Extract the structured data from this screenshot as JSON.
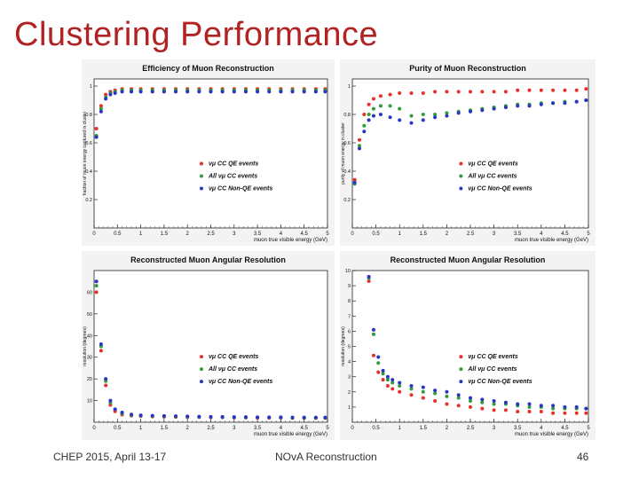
{
  "slide": {
    "title": "Clustering Performance",
    "footer_left": "CHEP 2015,  April 13-17",
    "footer_center": "NOvA Reconstruction",
    "page_number": "46"
  },
  "colors": {
    "title": "#b22222",
    "red": "#e8302a",
    "green": "#2e9e3a",
    "blue": "#2a35c8"
  },
  "chart_data": [
    {
      "type": "scatter",
      "title": "Efficiency of Muon Reconstruction",
      "xlabel": "muon true visible energy (GeV)",
      "ylabel": "fraction of muon energy captured in cluster",
      "xlim": [
        0,
        5
      ],
      "ylim": [
        0,
        1.05
      ],
      "xticks": [
        0,
        0.5,
        1,
        1.5,
        2,
        2.5,
        3,
        3.5,
        4,
        4.5,
        5
      ],
      "xtick_labels": [
        "0",
        "0.5",
        "1",
        "1.5",
        "2",
        "2.5",
        "3",
        "3.5",
        "4",
        "4.5",
        "5"
      ],
      "yticks": [
        0.2,
        0.4,
        0.6,
        0.8,
        1
      ],
      "ytick_labels": [
        "0.2",
        "0.4",
        "0.6",
        "0.8",
        "1"
      ],
      "legend_position": "center-right",
      "series": [
        {
          "name": "νμ CC QE events",
          "color": "#e8302a",
          "x": [
            0.05,
            0.15,
            0.25,
            0.35,
            0.45,
            0.6,
            0.8,
            1.0,
            1.25,
            1.5,
            1.75,
            2.0,
            2.25,
            2.5,
            2.75,
            3.0,
            3.25,
            3.5,
            3.75,
            4.0,
            4.25,
            4.5,
            4.75,
            4.95
          ],
          "y": [
            0.7,
            0.86,
            0.94,
            0.96,
            0.97,
            0.98,
            0.98,
            0.98,
            0.98,
            0.98,
            0.98,
            0.98,
            0.98,
            0.98,
            0.98,
            0.98,
            0.98,
            0.98,
            0.98,
            0.98,
            0.98,
            0.98,
            0.98,
            0.98
          ]
        },
        {
          "name": "All νμ CC events",
          "color": "#2e9e3a",
          "x": [
            0.05,
            0.15,
            0.25,
            0.35,
            0.45,
            0.6,
            0.8,
            1.0,
            1.25,
            1.5,
            1.75,
            2.0,
            2.25,
            2.5,
            2.75,
            3.0,
            3.25,
            3.5,
            3.75,
            4.0,
            4.25,
            4.5,
            4.75,
            4.95
          ],
          "y": [
            0.65,
            0.84,
            0.92,
            0.95,
            0.96,
            0.97,
            0.97,
            0.97,
            0.97,
            0.97,
            0.97,
            0.97,
            0.97,
            0.97,
            0.97,
            0.97,
            0.97,
            0.97,
            0.97,
            0.97,
            0.97,
            0.97,
            0.97,
            0.97
          ]
        },
        {
          "name": "νμ CC Non-QE events",
          "color": "#2a35c8",
          "x": [
            0.05,
            0.15,
            0.25,
            0.35,
            0.45,
            0.6,
            0.8,
            1.0,
            1.25,
            1.5,
            1.75,
            2.0,
            2.25,
            2.5,
            2.75,
            3.0,
            3.25,
            3.5,
            3.75,
            4.0,
            4.25,
            4.5,
            4.75,
            4.95
          ],
          "y": [
            0.64,
            0.82,
            0.91,
            0.94,
            0.95,
            0.96,
            0.96,
            0.96,
            0.96,
            0.96,
            0.96,
            0.96,
            0.96,
            0.96,
            0.96,
            0.96,
            0.96,
            0.96,
            0.96,
            0.96,
            0.96,
            0.96,
            0.96,
            0.96
          ]
        }
      ]
    },
    {
      "type": "scatter",
      "title": "Purity of Muon Reconstruction",
      "xlabel": "muon true visible energy (GeV)",
      "ylabel": "purity of muon energy in cluster",
      "xlim": [
        0,
        5
      ],
      "ylim": [
        0,
        1.05
      ],
      "xticks": [
        0,
        0.5,
        1,
        1.5,
        2,
        2.5,
        3,
        3.5,
        4,
        4.5,
        5
      ],
      "xtick_labels": [
        "0",
        "0.5",
        "1",
        "1.5",
        "2",
        "2.5",
        "3",
        "3.5",
        "4",
        "4.5",
        "5"
      ],
      "yticks": [
        0.2,
        0.4,
        0.6,
        0.8,
        1
      ],
      "ytick_labels": [
        "0.2",
        "0.4",
        "0.6",
        "0.8",
        "1"
      ],
      "legend_position": "center-right",
      "series": [
        {
          "name": "νμ CC QE events",
          "color": "#e8302a",
          "x": [
            0.05,
            0.15,
            0.25,
            0.35,
            0.45,
            0.6,
            0.8,
            1.0,
            1.25,
            1.5,
            1.75,
            2.0,
            2.25,
            2.5,
            2.75,
            3.0,
            3.25,
            3.5,
            3.75,
            4.0,
            4.25,
            4.5,
            4.75,
            4.95
          ],
          "y": [
            0.34,
            0.62,
            0.8,
            0.87,
            0.91,
            0.93,
            0.94,
            0.95,
            0.95,
            0.95,
            0.96,
            0.96,
            0.96,
            0.96,
            0.96,
            0.96,
            0.96,
            0.97,
            0.97,
            0.97,
            0.97,
            0.97,
            0.97,
            0.98
          ]
        },
        {
          "name": "All νμ CC events",
          "color": "#2e9e3a",
          "x": [
            0.05,
            0.15,
            0.25,
            0.35,
            0.45,
            0.6,
            0.8,
            1.0,
            1.25,
            1.5,
            1.75,
            2.0,
            2.25,
            2.5,
            2.75,
            3.0,
            3.25,
            3.5,
            3.75,
            4.0,
            4.25,
            4.5,
            4.75,
            4.95
          ],
          "y": [
            0.31,
            0.58,
            0.72,
            0.8,
            0.84,
            0.86,
            0.86,
            0.84,
            0.79,
            0.8,
            0.8,
            0.81,
            0.82,
            0.83,
            0.84,
            0.85,
            0.86,
            0.87,
            0.87,
            0.88,
            0.88,
            0.89,
            0.89,
            0.9
          ]
        },
        {
          "name": "νμ CC Non-QE events",
          "color": "#2a35c8",
          "x": [
            0.05,
            0.15,
            0.25,
            0.35,
            0.45,
            0.6,
            0.8,
            1.0,
            1.25,
            1.5,
            1.75,
            2.0,
            2.25,
            2.5,
            2.75,
            3.0,
            3.25,
            3.5,
            3.75,
            4.0,
            4.25,
            4.5,
            4.75,
            4.95
          ],
          "y": [
            0.32,
            0.56,
            0.68,
            0.76,
            0.79,
            0.8,
            0.78,
            0.76,
            0.74,
            0.76,
            0.78,
            0.79,
            0.81,
            0.82,
            0.83,
            0.84,
            0.85,
            0.86,
            0.86,
            0.87,
            0.88,
            0.88,
            0.89,
            0.9
          ]
        }
      ]
    },
    {
      "type": "scatter",
      "title": "Reconstructed Muon Angular Resolution",
      "xlabel": "muon true visible energy (GeV)",
      "ylabel": "resolution (degrees)",
      "xlim": [
        0,
        5
      ],
      "ylim": [
        0,
        70
      ],
      "xticks": [
        0,
        0.5,
        1,
        1.5,
        2,
        2.5,
        3,
        3.5,
        4,
        4.5,
        5
      ],
      "xtick_labels": [
        "0",
        "0.5",
        "1",
        "1.5",
        "2",
        "2.5",
        "3",
        "3.5",
        "4",
        "4.5",
        "5"
      ],
      "yticks": [
        10,
        20,
        30,
        40,
        50,
        60
      ],
      "ytick_labels": [
        "10",
        "20",
        "30",
        "40",
        "50",
        "60"
      ],
      "legend_position": "center-right",
      "series": [
        {
          "name": "νμ CC QE events",
          "color": "#e8302a",
          "x": [
            0.05,
            0.15,
            0.25,
            0.35,
            0.45,
            0.6,
            0.8,
            1.0,
            1.25,
            1.5,
            1.75,
            2.0,
            2.25,
            2.5,
            2.75,
            3.0,
            3.25,
            3.5,
            3.75,
            4.0,
            4.25,
            4.5,
            4.75,
            4.95
          ],
          "y": [
            60,
            33,
            17,
            8,
            5,
            3.5,
            3,
            2.8,
            2.6,
            2.5,
            2.4,
            2.3,
            2.3,
            2.2,
            2.2,
            2.1,
            2.1,
            2.0,
            2.0,
            2.0,
            1.9,
            1.9,
            1.9,
            1.9
          ]
        },
        {
          "name": "All νμ CC events",
          "color": "#2e9e3a",
          "x": [
            0.05,
            0.15,
            0.25,
            0.35,
            0.45,
            0.6,
            0.8,
            1.0,
            1.25,
            1.5,
            1.75,
            2.0,
            2.25,
            2.5,
            2.75,
            3.0,
            3.25,
            3.5,
            3.75,
            4.0,
            4.25,
            4.5,
            4.75,
            4.95
          ],
          "y": [
            63,
            35,
            19,
            9,
            6,
            4,
            3.3,
            3.0,
            2.8,
            2.7,
            2.6,
            2.5,
            2.4,
            2.4,
            2.3,
            2.3,
            2.2,
            2.2,
            2.2,
            2.1,
            2.1,
            2.1,
            2.0,
            2.0
          ]
        },
        {
          "name": "νμ CC Non-QE events",
          "color": "#2a35c8",
          "x": [
            0.05,
            0.15,
            0.25,
            0.35,
            0.45,
            0.6,
            0.8,
            1.0,
            1.25,
            1.5,
            1.75,
            2.0,
            2.25,
            2.5,
            2.75,
            3.0,
            3.25,
            3.5,
            3.75,
            4.0,
            4.25,
            4.5,
            4.75,
            4.95
          ],
          "y": [
            65,
            36,
            20,
            10,
            6,
            4.5,
            3.6,
            3.2,
            3.0,
            2.9,
            2.8,
            2.7,
            2.6,
            2.5,
            2.5,
            2.4,
            2.4,
            2.3,
            2.3,
            2.3,
            2.2,
            2.2,
            2.2,
            2.2
          ]
        }
      ]
    },
    {
      "type": "scatter",
      "title": "Reconstructed Muon Angular Resolution",
      "xlabel": "muon true visible energy (GeV)",
      "ylabel": "resolution (degrees)",
      "xlim": [
        0,
        5
      ],
      "ylim": [
        0,
        10
      ],
      "xticks": [
        0,
        0.5,
        1,
        1.5,
        2,
        2.5,
        3,
        3.5,
        4,
        4.5,
        5
      ],
      "xtick_labels": [
        "0",
        "0.5",
        "1",
        "1.5",
        "2",
        "2.5",
        "3",
        "3.5",
        "4",
        "4.5",
        "5"
      ],
      "yticks": [
        1,
        2,
        3,
        4,
        5,
        6,
        7,
        8,
        9,
        10
      ],
      "ytick_labels": [
        "1",
        "2",
        "3",
        "4",
        "5",
        "6",
        "7",
        "8",
        "9",
        "10"
      ],
      "legend_position": "center-right",
      "series": [
        {
          "name": "νμ CC QE events",
          "color": "#e8302a",
          "x": [
            0.35,
            0.45,
            0.55,
            0.65,
            0.75,
            0.85,
            1.0,
            1.25,
            1.5,
            1.75,
            2.0,
            2.25,
            2.5,
            2.75,
            3.0,
            3.25,
            3.5,
            3.75,
            4.0,
            4.25,
            4.5,
            4.75,
            4.95
          ],
          "y": [
            9.3,
            4.4,
            3.3,
            2.8,
            2.4,
            2.2,
            2.0,
            1.8,
            1.6,
            1.4,
            1.2,
            1.1,
            1.0,
            0.9,
            0.8,
            0.8,
            0.7,
            0.7,
            0.7,
            0.6,
            0.6,
            0.6,
            0.6
          ]
        },
        {
          "name": "All νμ CC events",
          "color": "#2e9e3a",
          "x": [
            0.35,
            0.45,
            0.55,
            0.65,
            0.75,
            0.85,
            1.0,
            1.25,
            1.5,
            1.75,
            2.0,
            2.25,
            2.5,
            2.75,
            3.0,
            3.25,
            3.5,
            3.75,
            4.0,
            4.25,
            4.5,
            4.75,
            4.95
          ],
          "y": [
            9.5,
            5.8,
            3.9,
            3.2,
            2.8,
            2.6,
            2.4,
            2.2,
            2.0,
            1.9,
            1.7,
            1.6,
            1.4,
            1.3,
            1.2,
            1.2,
            1.1,
            1.0,
            1.0,
            0.9,
            0.9,
            0.9,
            0.9
          ]
        },
        {
          "name": "νμ CC Non-QE events",
          "color": "#2a35c8",
          "x": [
            0.35,
            0.45,
            0.55,
            0.65,
            0.75,
            0.85,
            1.0,
            1.25,
            1.5,
            1.75,
            2.0,
            2.25,
            2.5,
            2.75,
            3.0,
            3.25,
            3.5,
            3.75,
            4.0,
            4.25,
            4.5,
            4.75,
            4.95
          ],
          "y": [
            9.6,
            6.1,
            4.3,
            3.4,
            3.0,
            2.8,
            2.6,
            2.4,
            2.3,
            2.1,
            2.0,
            1.8,
            1.6,
            1.5,
            1.4,
            1.3,
            1.2,
            1.2,
            1.1,
            1.1,
            1.0,
            1.0,
            0.9
          ]
        }
      ]
    }
  ]
}
